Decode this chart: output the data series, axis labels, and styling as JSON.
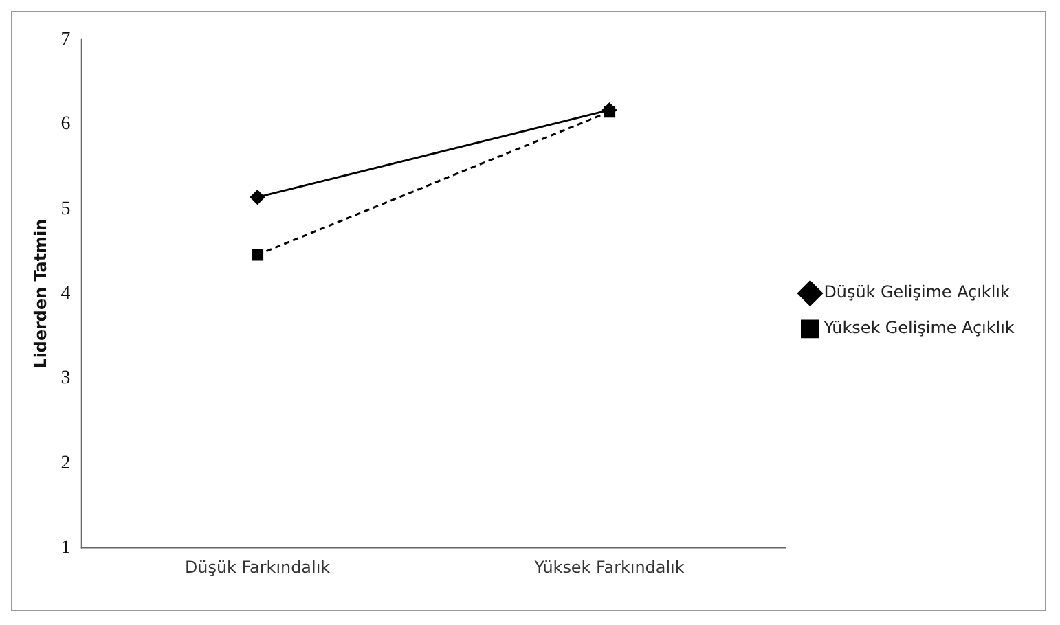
{
  "chart_data": {
    "type": "line",
    "ylabel": "Liderden Tatmin",
    "categories": [
      "Düşük Farkındalık",
      "Yüksek Farkındalık"
    ],
    "series": [
      {
        "name": "Düşük Gelişime Açıklık",
        "color": "#000000",
        "values": [
          5.14,
          6.17
        ],
        "marker": "diamond",
        "line_style": "solid"
      },
      {
        "name": "Yüksek Gelişime Açıklık",
        "color": "#000000",
        "values": [
          4.46,
          6.15
        ],
        "marker": "square",
        "line_style": "dashed"
      }
    ],
    "ylim": [
      1,
      7
    ],
    "yticks": [
      1,
      2,
      3,
      4,
      5,
      6,
      7
    ],
    "grid": false,
    "legend": "right"
  }
}
